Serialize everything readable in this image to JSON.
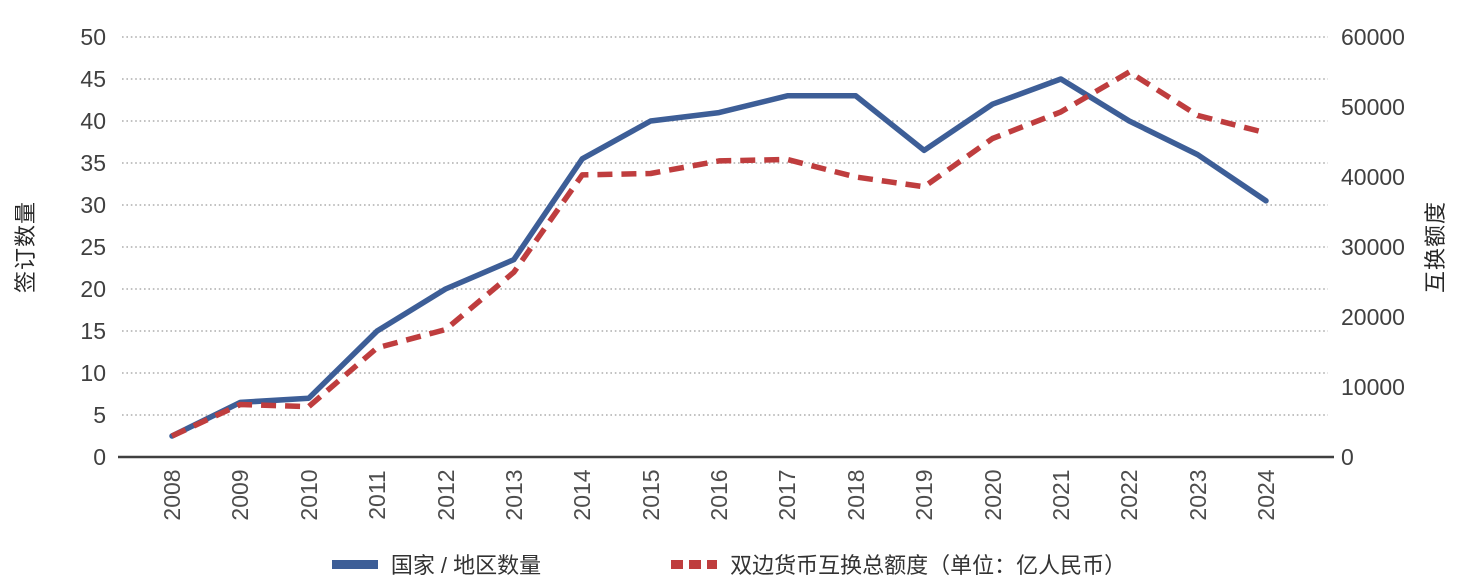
{
  "chart_data": {
    "type": "line",
    "title": "",
    "categories": [
      "2008",
      "2009",
      "2010",
      "2011",
      "2012",
      "2013",
      "2014",
      "2015",
      "2016",
      "2017",
      "2018",
      "2019",
      "2020",
      "2021",
      "2022",
      "2023",
      "2024"
    ],
    "series": [
      {
        "name": "国家 / 地区数量",
        "axis": "left",
        "color": "#3D5E97",
        "line_style": "solid",
        "values": [
          2.5,
          6.5,
          7,
          15,
          20,
          23.5,
          35.5,
          40,
          41,
          43,
          43,
          36.5,
          42,
          45,
          40,
          36,
          30.5
        ]
      },
      {
        "name": "双边货币互换总额度（单位：亿人民币）",
        "axis": "right",
        "color": "#BF3D3E",
        "line_style": "dashed",
        "values": [
          3000,
          7500,
          7200,
          15600,
          18200,
          26400,
          40300,
          40500,
          42300,
          42500,
          40000,
          38600,
          45500,
          49300,
          55000,
          48800,
          46300
        ]
      }
    ],
    "left_axis": {
      "label": "签订数量",
      "min": 0,
      "max": 50,
      "ticks": [
        0,
        5,
        10,
        15,
        20,
        25,
        30,
        35,
        40,
        45,
        50
      ]
    },
    "right_axis": {
      "label": "互换额度",
      "min": 0,
      "max": 60000,
      "ticks": [
        0,
        10000,
        20000,
        30000,
        40000,
        50000,
        60000
      ]
    },
    "x_axis": {
      "tick_rotation": -90
    },
    "grid": {
      "horizontal": true,
      "style": "dotted",
      "color": "#ADADAD"
    },
    "legend_position": "bottom"
  },
  "colors": {
    "background": "#FFFFFF",
    "axis_line": "#404040",
    "tick_text": "#404040",
    "axis_title_text": "#262626",
    "legend_text": "#333333"
  }
}
